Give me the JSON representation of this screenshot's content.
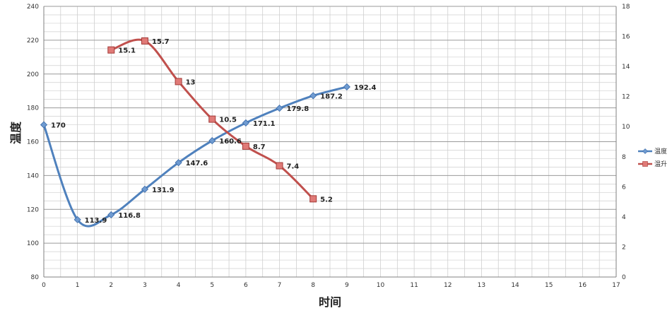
{
  "chart_data": {
    "type": "line",
    "title": "",
    "xlabel": "时间",
    "ylabel": "温度",
    "xlim": [
      0,
      17
    ],
    "x_ticks": [
      0,
      1,
      2,
      3,
      4,
      5,
      6,
      7,
      8,
      9,
      10,
      11,
      12,
      13,
      14,
      15,
      16,
      17
    ],
    "ylim": [
      80,
      240
    ],
    "y_ticks": [
      80,
      100,
      120,
      140,
      160,
      180,
      200,
      220,
      240
    ],
    "y2lim": [
      0,
      18
    ],
    "y2_ticks": [
      0,
      2,
      4,
      6,
      8,
      10,
      12,
      14,
      16,
      18
    ],
    "grid": true,
    "legend_position": "right",
    "series": [
      {
        "name": "温度",
        "axis": "left",
        "color": "#4F81BD",
        "marker": "diamond",
        "smooth": true,
        "x": [
          0,
          1,
          2,
          3,
          4,
          5,
          6,
          7,
          8,
          9
        ],
        "values": [
          170,
          113.9,
          116.8,
          131.9,
          147.6,
          160.6,
          171.1,
          179.8,
          187.2,
          192.4
        ],
        "labels": [
          "170",
          "113.9",
          "116.8",
          "131.9",
          "147.6",
          "160.6",
          "171.1",
          "179.8",
          "187.2",
          "192.4"
        ]
      },
      {
        "name": "温升",
        "axis": "right",
        "color": "#C0504D",
        "marker": "square",
        "smooth": true,
        "x": [
          2,
          3,
          4,
          5,
          6,
          7,
          8
        ],
        "values": [
          15.1,
          15.7,
          13,
          10.5,
          8.7,
          7.4,
          5.2
        ],
        "labels": [
          "15.1",
          "15.7",
          "13",
          "10.5",
          "8.7",
          "7.4",
          "5.2"
        ]
      }
    ]
  }
}
